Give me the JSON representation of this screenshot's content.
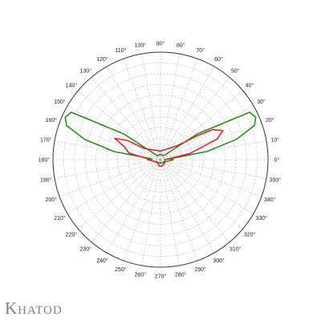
{
  "brand": {
    "name": "Khatod",
    "color": "#7f7f7f"
  },
  "chart_data": {
    "type": "polar",
    "angle_unit": "degrees",
    "angle_ticks": [
      "0°",
      "10°",
      "20°",
      "30°",
      "40°",
      "50°",
      "60°",
      "70°",
      "80°",
      "90°",
      "100°",
      "110°",
      "120°",
      "130°",
      "140°",
      "150°",
      "160°",
      "170°",
      "180°",
      "190°",
      "200°",
      "210°",
      "220°",
      "230°",
      "240°",
      "250°",
      "260°",
      "270°",
      "280°",
      "290°",
      "300°",
      "310°",
      "320°",
      "330°",
      "340°",
      "350°"
    ],
    "radial_rings": 10,
    "radial_range": [
      0,
      1
    ],
    "grid": true,
    "grid_color": "#b0b0b0",
    "axis_color": "#333333",
    "series": [
      {
        "color": "#2e8b1f",
        "points": [
          [
            0,
            0.12
          ],
          [
            5,
            0.08
          ],
          [
            10,
            0.44
          ],
          [
            15,
            0.73
          ],
          [
            20,
            0.93
          ],
          [
            24,
            0.97
          ],
          [
            28,
            0.94
          ],
          [
            35,
            0.42
          ],
          [
            50,
            0.05
          ],
          [
            90,
            0.05
          ],
          [
            130,
            0.05
          ],
          [
            145,
            0.42
          ],
          [
            152,
            0.94
          ],
          [
            156,
            0.97
          ],
          [
            160,
            0.93
          ],
          [
            165,
            0.73
          ],
          [
            170,
            0.44
          ],
          [
            175,
            0.08
          ],
          [
            180,
            0.12
          ],
          [
            270,
            0.03
          ]
        ]
      },
      {
        "color": "#e0252b",
        "points": [
          [
            0,
            0.04
          ],
          [
            12,
            0.28
          ],
          [
            20,
            0.56
          ],
          [
            25,
            0.64
          ],
          [
            30,
            0.56
          ],
          [
            33,
            0.41
          ],
          [
            40,
            0.2
          ],
          [
            90,
            0.08
          ],
          [
            145,
            0.18
          ],
          [
            150,
            0.36
          ],
          [
            155,
            0.47
          ],
          [
            160,
            0.36
          ],
          [
            168,
            0.3
          ],
          [
            175,
            0.13
          ],
          [
            220,
            0.04
          ],
          [
            260,
            0.06
          ],
          [
            270,
            0.06
          ],
          [
            280,
            0.06
          ],
          [
            320,
            0.05
          ]
        ]
      }
    ]
  }
}
